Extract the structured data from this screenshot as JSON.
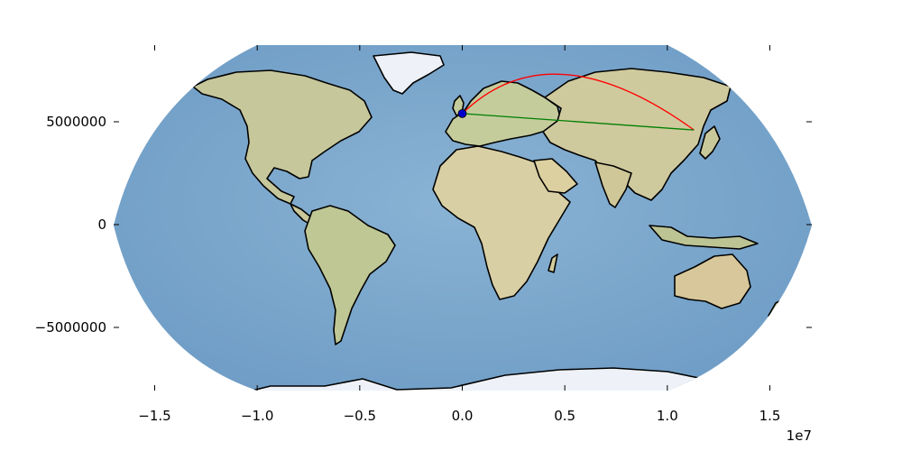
{
  "chart_data": {
    "type": "map",
    "projection": "Robinson",
    "x_ticks": [
      {
        "value": -15000000,
        "label": "−1.5"
      },
      {
        "value": -10000000,
        "label": "−1.0"
      },
      {
        "value": -5000000,
        "label": "−0.5"
      },
      {
        "value": 0,
        "label": "0.0"
      },
      {
        "value": 5000000,
        "label": "0.5"
      },
      {
        "value": 10000000,
        "label": "1.0"
      },
      {
        "value": 15000000,
        "label": "1.5"
      }
    ],
    "x_offset_label": "1e7",
    "y_ticks": [
      {
        "value": 5000000,
        "label": "5000000"
      },
      {
        "value": 0,
        "label": "0"
      },
      {
        "value": -5000000,
        "label": "−5000000"
      }
    ],
    "xlim": [
      -17000000,
      17000000
    ],
    "ylim": [
      -8600000,
      8600000
    ],
    "routes": [
      {
        "kind": "great-circle",
        "color": "#ff0000",
        "from": {
          "x": 0,
          "y": 5400000
        },
        "to": {
          "x": 11300000,
          "y": 4600000
        },
        "peak": {
          "x": 5000000,
          "y": 7300000
        }
      },
      {
        "kind": "straight",
        "color": "#008000",
        "from": {
          "x": 0,
          "y": 5400000
        },
        "to": {
          "x": 11300000,
          "y": 4600000
        }
      }
    ],
    "point": {
      "x": 0,
      "y": 5400000,
      "color": "#0000cc"
    }
  },
  "colors": {
    "ocean": "#79a6cc",
    "land": "#c7c99a",
    "ice": "#eef2f8",
    "coast": "#000000"
  }
}
